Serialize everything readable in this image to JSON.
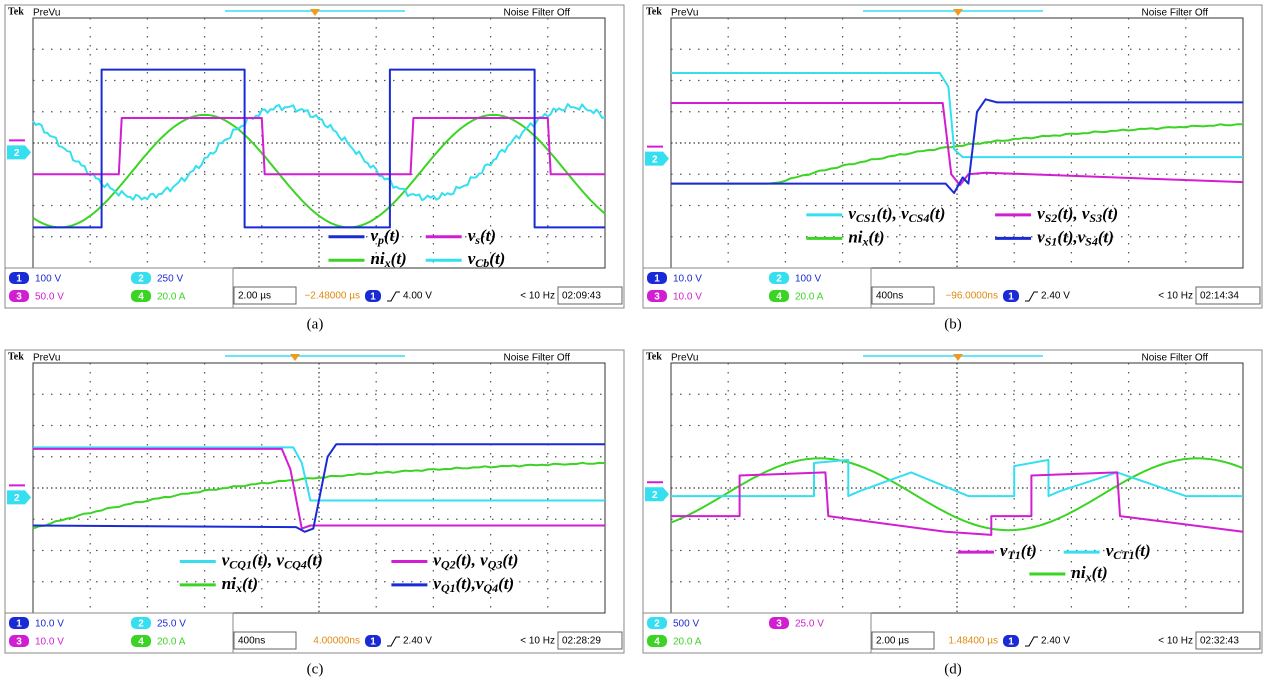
{
  "panels": [
    {
      "brand": "Tek",
      "mode": "PreVu",
      "filter": "Noise Filter Off",
      "marker": "2",
      "legend": [
        {
          "parts": [
            "v",
            "p",
            "(t)"
          ]
        },
        {
          "parts": [
            "v",
            "s",
            "(t)"
          ]
        },
        {
          "parts": [
            "ni",
            "x",
            "(t)"
          ]
        },
        {
          "parts": [
            "v",
            "Cb",
            "(t)"
          ]
        }
      ],
      "channels": [
        {
          "id": "1",
          "scale": "100 V"
        },
        {
          "id": "2",
          "scale": "250 V"
        },
        {
          "id": "3",
          "scale": "50.0 V"
        },
        {
          "id": "4",
          "scale": "20.0 A"
        }
      ],
      "timebase": "2.00 µs",
      "position": "−2.48000 µs",
      "trigger_channel": "1",
      "trigger_level": "4.00 V",
      "frequency": "< 10 Hz",
      "clock": "02:09:43",
      "caption": "(a)"
    },
    {
      "brand": "Tek",
      "mode": "PreVu",
      "filter": "Noise Filter Off",
      "marker": "2",
      "legend": [
        {
          "parts": [
            "v",
            "CS1",
            "(t), v",
            "CS4",
            "(t)"
          ]
        },
        {
          "parts": [
            "v",
            "S2",
            "(t), v",
            "S3",
            "(t)"
          ]
        },
        {
          "parts": [
            "ni",
            "x",
            "(t)"
          ]
        },
        {
          "parts": [
            "v",
            "S1",
            "(t),v",
            "S4",
            "(t)"
          ]
        }
      ],
      "channels": [
        {
          "id": "1",
          "scale": "10.0 V"
        },
        {
          "id": "2",
          "scale": "100 V"
        },
        {
          "id": "3",
          "scale": "10.0 V"
        },
        {
          "id": "4",
          "scale": "20.0 A"
        }
      ],
      "timebase": "400ns",
      "position": "−96.0000ns",
      "trigger_channel": "1",
      "trigger_level": "2.40 V",
      "frequency": "< 10 Hz",
      "clock": "02:14:34",
      "caption": "(b)"
    },
    {
      "brand": "Tek",
      "mode": "PreVu",
      "filter": "Noise Filter Off",
      "marker": "2",
      "legend": [
        {
          "parts": [
            "v",
            "CQ1",
            "(t), v",
            "CQ4",
            "(t)"
          ]
        },
        {
          "parts": [
            "v",
            "Q2",
            "(t), v",
            "Q3",
            "(t)"
          ]
        },
        {
          "parts": [
            "ni",
            "x",
            "(t)"
          ]
        },
        {
          "parts": [
            "v",
            "Q1",
            "(t),v",
            "Q4",
            "(t)"
          ]
        }
      ],
      "channels": [
        {
          "id": "1",
          "scale": "10.0 V"
        },
        {
          "id": "2",
          "scale": "25.0 V"
        },
        {
          "id": "3",
          "scale": "10.0 V"
        },
        {
          "id": "4",
          "scale": "20.0 A"
        }
      ],
      "timebase": "400ns",
      "position": "4.00000ns",
      "trigger_channel": "1",
      "trigger_level": "2.40 V",
      "frequency": "< 10 Hz",
      "clock": "02:28:29",
      "caption": "(c)"
    },
    {
      "brand": "Tek",
      "mode": "PreVu",
      "filter": "Noise Filter Off",
      "marker": "2",
      "legend": [
        {
          "parts": [
            "v",
            "T1",
            "(t)"
          ]
        },
        {
          "parts": [
            "v",
            "CT1",
            "(t)"
          ]
        },
        {
          "parts": [
            "ni",
            "x",
            "(t)"
          ]
        }
      ],
      "channels": [
        {
          "id": "2",
          "scale": "500 V"
        },
        {
          "id": "3",
          "scale": "25.0 V"
        },
        {
          "id": "4",
          "scale": "20.0 A"
        }
      ],
      "timebase": "2.00 µs",
      "position": "1.48400 µs",
      "trigger_channel": "1",
      "trigger_level": "2.40 V",
      "frequency": "< 10 Hz",
      "clock": "02:32:43",
      "caption": "(d)"
    }
  ]
}
